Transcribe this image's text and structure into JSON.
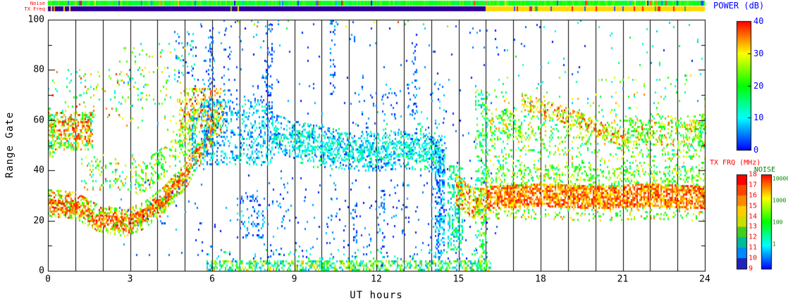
{
  "chart_data": {
    "type": "heatmap",
    "xlabel": "UT hours",
    "ylabel": "Range Gate",
    "xlim": [
      0,
      24
    ],
    "ylim": [
      0,
      100
    ],
    "xticks": [
      0,
      3,
      6,
      9,
      12,
      15,
      18,
      21,
      24
    ],
    "yticks": [
      0,
      20,
      40,
      60,
      80,
      100
    ],
    "yticks_minor": [
      10,
      30,
      50,
      70,
      90
    ],
    "grid": "vertical black line at every UT hour",
    "legend_position": "right",
    "power_scale": {
      "label": "POWER (dB)",
      "min": 0,
      "max": 40,
      "ticks": [
        40,
        30,
        20,
        10,
        0
      ],
      "colors_bottom_to_top": [
        "#0000ff",
        "#00ffff",
        "#00ff00",
        "#ffff00",
        "#ff0000"
      ]
    },
    "txfreq_scale": {
      "label": "TX FRQ (MHz)",
      "ticks": [
        18,
        17,
        16,
        15,
        14,
        13,
        12,
        11,
        10,
        9
      ],
      "segment_colors_top_to_bottom": [
        "#ff0000",
        "#ff4400",
        "#ff8800",
        "#ffcc00",
        "#ccdd00",
        "#44cc22",
        "#00bb99",
        "#0088ff",
        "#2222bb"
      ]
    },
    "noise_scale": {
      "label": "NOISE",
      "ticks": [
        "10000",
        "1000",
        "100",
        "1"
      ]
    },
    "strips": {
      "noise": {
        "label": "Noise",
        "base_power": [
          16,
          24
        ],
        "speck_low_prob": 0.05,
        "speck_low_power": [
          0,
          8
        ],
        "speck_high_prob": 0.04,
        "speck_high_power": [
          28,
          40
        ]
      },
      "txfreq": {
        "label": "TX Freq",
        "segments": [
          {
            "t": [
              0,
              16
            ],
            "color": "#2a0090"
          },
          {
            "t": [
              16,
              24
            ],
            "color": "#ffd800"
          }
        ],
        "specks": [
          {
            "t": [
              0,
              0.9
            ],
            "density": 0.3,
            "colors": [
              "#ffd800",
              "#ff8800"
            ]
          },
          {
            "t": [
              6.3,
              7.1
            ],
            "density": 0.15,
            "colors": [
              "#ffd800",
              "#88cc00"
            ]
          },
          {
            "t": [
              16,
              24
            ],
            "density": 0.12,
            "colors": [
              "#ff2200",
              "#3355ff",
              "#22bb33"
            ]
          }
        ]
      }
    },
    "features": [
      {
        "kind": "cloud",
        "t": [
          0,
          1.6
        ],
        "g": [
          48,
          63
        ],
        "density": 0.4,
        "p": [
          10,
          40
        ]
      },
      {
        "kind": "cloud",
        "t": [
          0,
          1.5
        ],
        "g": [
          52,
          60
        ],
        "density": 0.4,
        "p": [
          30,
          40
        ]
      },
      {
        "kind": "band",
        "path": [
          [
            0,
            27
          ],
          [
            1,
            26
          ],
          [
            1.8,
            21
          ],
          [
            2.8,
            19
          ],
          [
            3.5,
            22
          ],
          [
            4.2,
            28
          ],
          [
            5,
            38
          ],
          [
            5.8,
            52
          ],
          [
            6.2,
            60
          ]
        ],
        "th": 11,
        "density": 0.5,
        "p": [
          18,
          40
        ]
      },
      {
        "kind": "band",
        "path": [
          [
            0,
            26
          ],
          [
            1,
            25
          ],
          [
            1.8,
            20
          ],
          [
            2.8,
            19
          ],
          [
            3.5,
            22
          ],
          [
            4.2,
            28
          ],
          [
            5,
            38
          ],
          [
            5.8,
            52
          ]
        ],
        "th": 5,
        "density": 0.55,
        "p": [
          32,
          40
        ]
      },
      {
        "kind": "cloud",
        "t": [
          4.8,
          6.4
        ],
        "g": [
          55,
          72
        ],
        "density": 0.35,
        "p": [
          22,
          40
        ]
      },
      {
        "kind": "band",
        "path": [
          [
            3.2,
            35
          ],
          [
            4,
            41
          ],
          [
            4.7,
            48
          ],
          [
            5.4,
            56
          ]
        ],
        "th": 12,
        "density": 0.32,
        "p": [
          14,
          34
        ]
      },
      {
        "kind": "cloud",
        "t": [
          1.2,
          3.2
        ],
        "g": [
          32,
          46
        ],
        "density": 0.13,
        "p": [
          10,
          38
        ]
      },
      {
        "kind": "cloud",
        "t": [
          0,
          2.6
        ],
        "g": [
          60,
          80
        ],
        "density": 0.07,
        "p": [
          8,
          40
        ]
      },
      {
        "kind": "cloud",
        "t": [
          2.6,
          5
        ],
        "g": [
          55,
          90
        ],
        "density": 0.05,
        "p": [
          5,
          35
        ]
      },
      {
        "kind": "cloud",
        "t": [
          4.6,
          5.4
        ],
        "g": [
          75,
          95
        ],
        "density": 0.12,
        "p": [
          0,
          15
        ]
      },
      {
        "kind": "cloud",
        "t": [
          5.6,
          8.2
        ],
        "g": [
          42,
          68
        ],
        "density": 0.26,
        "p": [
          2,
          14
        ]
      },
      {
        "kind": "band",
        "path": [
          [
            8.2,
            55
          ],
          [
            9,
            52
          ],
          [
            10,
            50
          ],
          [
            11,
            47
          ],
          [
            12,
            47
          ],
          [
            13,
            48
          ],
          [
            14.5,
            46
          ]
        ],
        "th": 15,
        "density": 0.33,
        "p": [
          2,
          14
        ]
      },
      {
        "kind": "band",
        "path": [
          [
            8.2,
            54
          ],
          [
            9,
            52
          ],
          [
            10,
            50
          ],
          [
            11,
            47
          ],
          [
            12,
            47
          ],
          [
            13,
            48
          ],
          [
            14.5,
            46
          ]
        ],
        "th": 7,
        "density": 0.3,
        "p": [
          8,
          16
        ]
      },
      {
        "kind": "cloud",
        "t": [
          6.9,
          7.9
        ],
        "g": [
          13,
          30
        ],
        "density": 0.18,
        "p": [
          0,
          10
        ]
      },
      {
        "kind": "cloud",
        "t": [
          5,
          16.5
        ],
        "g": [
          0,
          100
        ],
        "density": 0.012,
        "p": [
          0,
          8
        ]
      },
      {
        "kind": "cloud",
        "t": [
          8,
          14.5
        ],
        "g": [
          8,
          35
        ],
        "density": 0.03,
        "p": [
          0,
          8
        ]
      },
      {
        "kind": "cloud",
        "t": [
          5.6,
          8.2
        ],
        "g": [
          68,
          100
        ],
        "density": 0.03,
        "p": [
          0,
          8
        ]
      },
      {
        "kind": "cloud",
        "t": [
          11,
          14.5
        ],
        "g": [
          55,
          75
        ],
        "density": 0.04,
        "p": [
          0,
          10
        ]
      },
      {
        "kind": "column",
        "t": [
          5.25,
          5.45
        ],
        "g": [
          38,
          62
        ],
        "density": 0.3,
        "p": [
          4,
          14
        ]
      },
      {
        "kind": "column",
        "t": [
          5.85,
          6.05
        ],
        "g": [
          60,
          95
        ],
        "density": 0.25,
        "p": [
          0,
          8
        ]
      },
      {
        "kind": "column",
        "t": [
          7.95,
          8.2
        ],
        "g": [
          55,
          100
        ],
        "density": 0.2,
        "p": [
          0,
          8
        ]
      },
      {
        "kind": "column",
        "t": [
          10.3,
          10.5
        ],
        "g": [
          70,
          100
        ],
        "density": 0.15,
        "p": [
          0,
          8
        ]
      },
      {
        "kind": "column",
        "t": [
          11.15,
          11.3
        ],
        "g": [
          0,
          28
        ],
        "density": 0.18,
        "p": [
          0,
          8
        ]
      },
      {
        "kind": "column",
        "t": [
          12.1,
          12.3
        ],
        "g": [
          0,
          32
        ],
        "density": 0.18,
        "p": [
          0,
          10
        ]
      },
      {
        "kind": "column",
        "t": [
          13.3,
          13.5
        ],
        "g": [
          60,
          90
        ],
        "density": 0.12,
        "p": [
          0,
          8
        ]
      },
      {
        "kind": "column",
        "t": [
          14.15,
          14.5
        ],
        "g": [
          5,
          50
        ],
        "density": 0.45,
        "p": [
          0,
          12
        ]
      },
      {
        "kind": "cloud",
        "t": [
          5.8,
          16.2
        ],
        "g": [
          0,
          3.5
        ],
        "density": 0.5,
        "p": [
          5,
          34
        ]
      },
      {
        "kind": "cloud",
        "t": [
          5.8,
          16
        ],
        "g": [
          3.5,
          8
        ],
        "density": 0.06,
        "p": [
          0,
          20
        ]
      },
      {
        "kind": "cloud",
        "t": [
          14.6,
          15.15
        ],
        "g": [
          8,
          42
        ],
        "density": 0.42,
        "p": [
          5,
          20
        ]
      },
      {
        "kind": "band",
        "path": [
          [
            14.9,
            32
          ],
          [
            15.4,
            27
          ],
          [
            16,
            26
          ]
        ],
        "th": 12,
        "density": 0.5,
        "p": [
          24,
          40
        ]
      },
      {
        "kind": "column",
        "t": [
          15.6,
          16.05
        ],
        "g": [
          0,
          72
        ],
        "density": 0.3,
        "p": [
          8,
          28
        ]
      },
      {
        "kind": "band",
        "path": [
          [
            16,
            29
          ],
          [
            18,
            30
          ],
          [
            20,
            29
          ],
          [
            22,
            30
          ],
          [
            24,
            29
          ]
        ],
        "th": 9,
        "density": 0.75,
        "p": [
          30,
          40
        ]
      },
      {
        "kind": "band",
        "path": [
          [
            16,
            37
          ],
          [
            18,
            38
          ],
          [
            20,
            37
          ],
          [
            22,
            38
          ],
          [
            24,
            37
          ]
        ],
        "th": 8,
        "density": 0.26,
        "p": [
          14,
          32
        ]
      },
      {
        "kind": "band",
        "path": [
          [
            16,
            22
          ],
          [
            18,
            23
          ],
          [
            20,
            22
          ],
          [
            22,
            23
          ],
          [
            24,
            22
          ]
        ],
        "th": 5,
        "density": 0.2,
        "p": [
          14,
          36
        ]
      },
      {
        "kind": "cloud",
        "t": [
          16,
          24
        ],
        "g": [
          45,
          62
        ],
        "density": 0.18,
        "p": [
          10,
          34
        ]
      },
      {
        "kind": "band",
        "path": [
          [
            17.3,
            67
          ],
          [
            18.5,
            63
          ],
          [
            19.5,
            59
          ],
          [
            20.5,
            54
          ],
          [
            21.2,
            52
          ]
        ],
        "th": 6,
        "density": 0.45,
        "p": [
          22,
          40
        ]
      },
      {
        "kind": "cloud",
        "t": [
          21,
          24
        ],
        "g": [
          50,
          60
        ],
        "density": 0.26,
        "p": [
          16,
          38
        ]
      },
      {
        "kind": "cloud",
        "t": [
          16.2,
          17.3
        ],
        "g": [
          52,
          64
        ],
        "density": 0.28,
        "p": [
          12,
          35
        ]
      },
      {
        "kind": "column",
        "t": [
          0,
          0.25
        ],
        "g": [
          45,
          62
        ],
        "density": 0.4,
        "p": [
          10,
          30
        ]
      },
      {
        "kind": "column",
        "t": [
          23.75,
          24
        ],
        "g": [
          48,
          62
        ],
        "density": 0.35,
        "p": [
          12,
          30
        ]
      },
      {
        "kind": "cloud",
        "t": [
          16,
          24
        ],
        "g": [
          62,
          78
        ],
        "density": 0.03,
        "p": [
          5,
          35
        ]
      },
      {
        "kind": "cloud",
        "t": [
          16,
          24
        ],
        "g": [
          35,
          45
        ],
        "density": 0.1,
        "p": [
          8,
          35
        ]
      },
      {
        "kind": "cloud",
        "t": [
          16.5,
          24
        ],
        "g": [
          78,
          100
        ],
        "density": 0.012,
        "p": [
          0,
          20
        ]
      },
      {
        "kind": "cloud",
        "t": [
          2.5,
          5.6
        ],
        "g": [
          5,
          38
        ],
        "density": 0.015,
        "p": [
          0,
          8
        ]
      },
      {
        "kind": "cloud",
        "t": [
          6.5,
          14.8
        ],
        "g": [
          96,
          100
        ],
        "density": 0.02,
        "p": [
          0,
          40
        ]
      },
      {
        "kind": "cloud",
        "t": [
          9,
          14.5
        ],
        "g": [
          40,
          58
        ],
        "density": 0.04,
        "p": [
          12,
          22
        ]
      }
    ]
  }
}
